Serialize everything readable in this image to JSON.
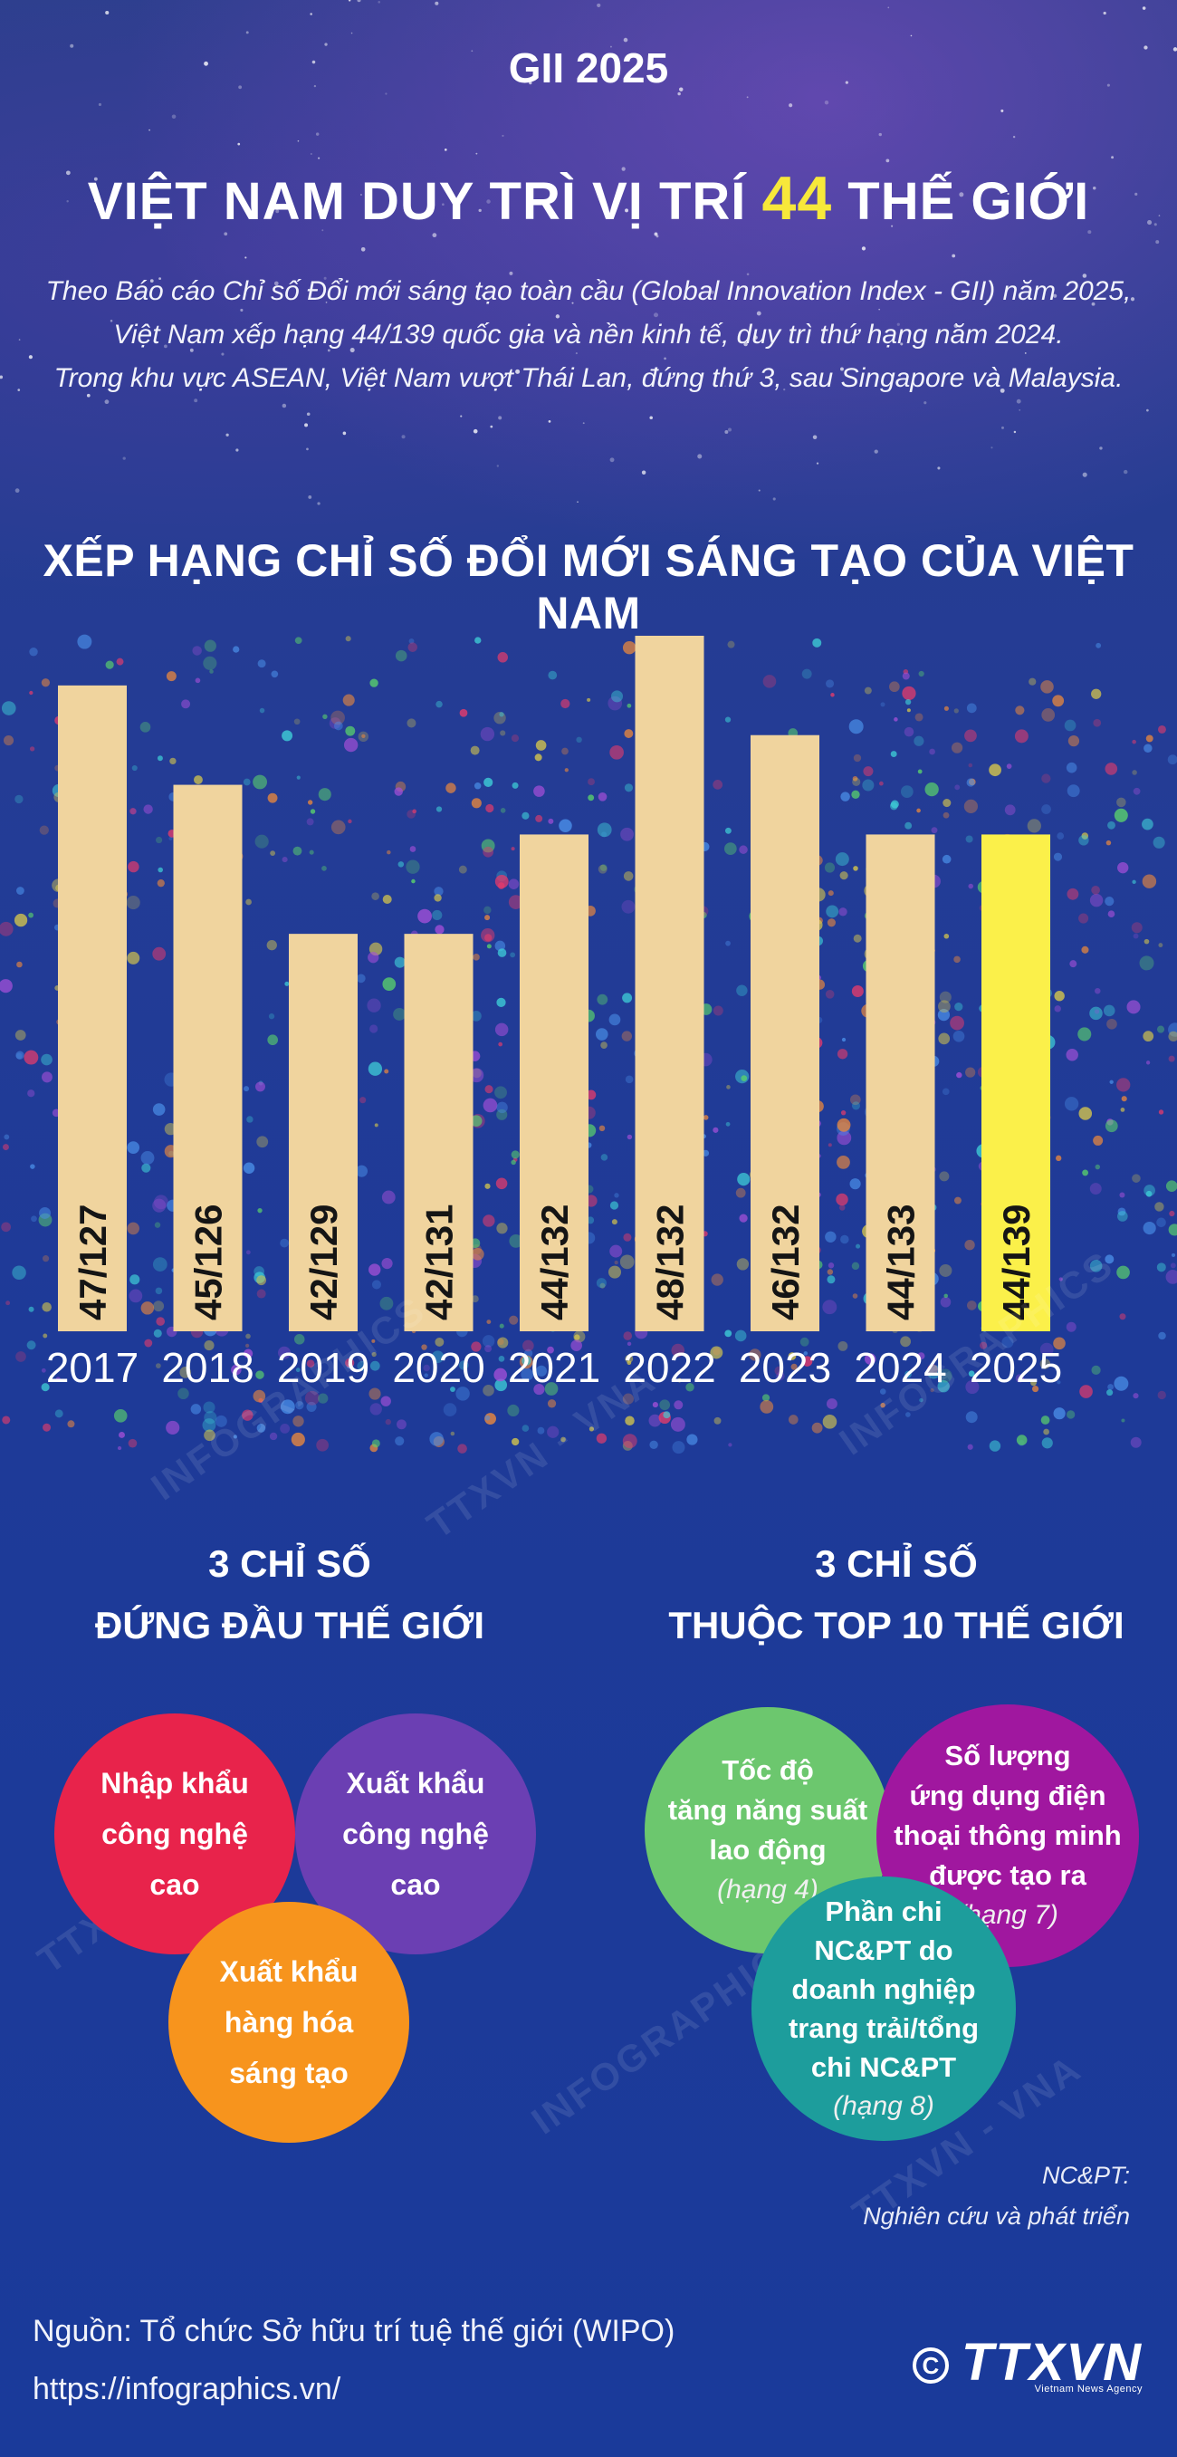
{
  "header": {
    "kicker": "GII 2025",
    "headline_before": "VIỆT NAM DUY TRÌ VỊ TRÍ",
    "headline_highlight": "44",
    "headline_after": "THẾ GIỚI",
    "intro_lines": [
      "Theo Báo cáo Chỉ số Đổi mới sáng tạo toàn cầu (Global Innovation Index - GII) năm 2025,",
      "Việt Nam xếp hạng 44/139 quốc gia và nền kinh tế, duy trì thứ hạng năm 2024.",
      "Trong khu vực ASEAN, Việt Nam vượt Thái Lan, đứng thứ 3, sau Singapore và Malaysia."
    ]
  },
  "chart_data": {
    "type": "bar",
    "title": "XẾP HẠNG CHỈ SỐ ĐỔI MỚI SÁNG TẠO CỦA VIỆT NAM",
    "categories": [
      "2017",
      "2018",
      "2019",
      "2020",
      "2021",
      "2022",
      "2023",
      "2024",
      "2025"
    ],
    "values": [
      47,
      45,
      42,
      42,
      44,
      48,
      46,
      44,
      44
    ],
    "labels": [
      "47/127",
      "45/126",
      "42/129",
      "42/131",
      "44/132",
      "48/132",
      "46/132",
      "44/133",
      "44/139"
    ],
    "ylim": [
      40,
      48
    ],
    "highlight_index": 8,
    "colors": {
      "bar": "#f0d49e",
      "highlight": "#fbf04a"
    }
  },
  "sections": {
    "left": {
      "heading_line1": "3 CHỈ SỐ",
      "heading_line2": "ĐỨNG ĐẦU THẾ GIỚI",
      "circles": [
        {
          "lines": [
            "Nhập khẩu",
            "công nghệ",
            "cao"
          ],
          "color": "#e8234b"
        },
        {
          "lines": [
            "Xuất khẩu",
            "công nghệ",
            "cao"
          ],
          "color": "#6b3fb3"
        },
        {
          "lines": [
            "Xuất khẩu",
            "hàng hóa",
            "sáng tạo"
          ],
          "color": "#f7941d"
        }
      ]
    },
    "right": {
      "heading_line1": "3 CHỈ SỐ",
      "heading_line2": "THUỘC TOP 10 THẾ GIỚI",
      "circles": [
        {
          "lines": [
            "Tốc độ",
            "tăng năng suất",
            "lao động"
          ],
          "rank": "(hạng 4)",
          "color": "#6cc76e"
        },
        {
          "lines": [
            "Số lượng",
            "ứng dụng điện",
            "thoại thông minh",
            "được tạo ra"
          ],
          "rank": "(hạng 7)",
          "color": "#a0179f"
        },
        {
          "lines": [
            "Phần chi",
            "NC&PT do",
            "doanh nghiệp",
            "trang trải/tổng",
            "chi NC&PT"
          ],
          "rank": "(hạng 8)",
          "color": "#1d9d9c"
        }
      ]
    }
  },
  "note": {
    "line1": "NC&PT:",
    "line2": "Nghiên cứu và phát triển"
  },
  "footer": {
    "source": "Nguồn: Tổ chức Sở hữu trí tuệ thế giới (WIPO)",
    "url": "https://infographics.vn/",
    "copyright_symbol": "C",
    "logo": "TTXVN",
    "logo_sub": "Vietnam News Agency"
  },
  "watermarks": [
    "INFOGRAPHICS",
    "TTXVN - VNA"
  ]
}
